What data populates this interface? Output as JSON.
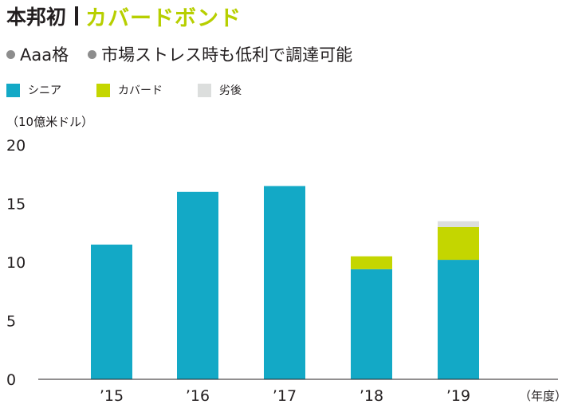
{
  "header": {
    "prefix": "本邦初",
    "highlight": "カバードボンド",
    "highlight_color": "#b7cf00"
  },
  "bullets": [
    "Aaa格",
    "市場ストレス時も低利で調達可能"
  ],
  "chart_data": {
    "type": "bar",
    "stacked": true,
    "title": "",
    "ylabel": "（10億米ドル）",
    "xlabel": "（年度）",
    "ylim": [
      0,
      20
    ],
    "yticks": [
      0,
      5,
      10,
      15,
      20
    ],
    "grid": false,
    "legend_position": "top-left",
    "categories": [
      "’15",
      "’16",
      "’17",
      "’18",
      "’19"
    ],
    "series": [
      {
        "name": "シニア",
        "color": "#13a9c6",
        "values": [
          11.5,
          16.0,
          16.5,
          9.4,
          10.2
        ]
      },
      {
        "name": "カバード",
        "color": "#c4d600",
        "values": [
          0,
          0,
          0,
          1.1,
          2.8
        ]
      },
      {
        "name": "劣後",
        "color": "#dcdedd",
        "values": [
          0,
          0,
          0,
          0,
          0.5
        ]
      }
    ]
  }
}
